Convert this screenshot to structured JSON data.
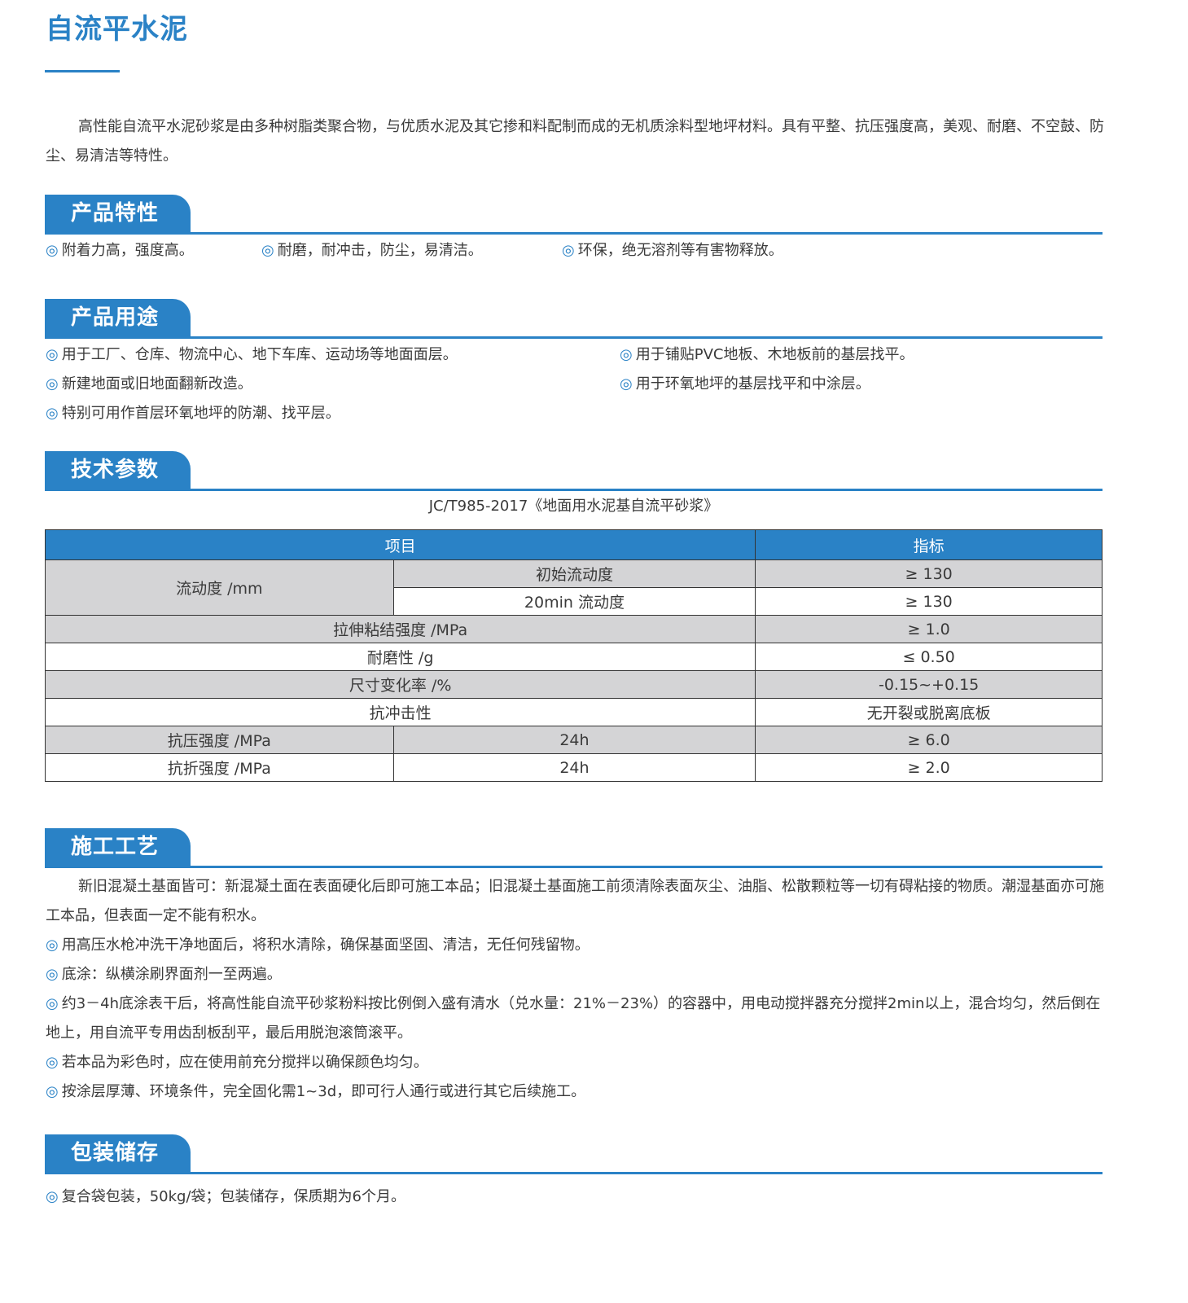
{
  "title": "自流平水泥",
  "intro": "高性能自流平水泥砂浆是由多种树脂类聚合物，与优质水泥及其它掺和料配制而成的无机质涂料型地坪材料。具有平整、抗压强度高，美观、耐磨、不空鼓、防尘、易清洁等特性。",
  "bullet": "◎",
  "features": {
    "heading": "产品特性",
    "items": [
      "附着力高，强度高。",
      "耐磨，耐冲击，防尘，易清洁。",
      "环保，绝无溶剂等有害物释放。"
    ]
  },
  "uses": {
    "heading": "产品用途",
    "items": [
      "用于工厂、仓库、物流中心、地下车库、运动场等地面面层。",
      "用于铺贴PVC地板、木地板前的基层找平。",
      "新建地面或旧地面翻新改造。",
      "用于环氧地坪的基层找平和中涂层。",
      "特别可用作首层环氧地坪的防潮、找平层。"
    ]
  },
  "tech": {
    "heading": "技术参数",
    "standard": "JC/T985-2017《地面用水泥基自流平砂浆》",
    "header": [
      "项目",
      "指标"
    ],
    "rows": {
      "flow": "流动度 /mm",
      "flow_a": "初始流动度",
      "flow_a_v": "≥ 130",
      "flow_b": "20min 流动度",
      "flow_b_v": "≥ 130",
      "tensile": "拉伸粘结强度 /MPa",
      "tensile_v": "≥ 1.0",
      "wear": "耐磨性 /g",
      "wear_v": "≤ 0.50",
      "size": "尺寸变化率 /%",
      "size_v": "-0.15~+0.15",
      "impact": "抗冲击性",
      "impact_v": "无开裂或脱离底板",
      "comp": "抗压强度 /MPa",
      "comp_t": "24h",
      "comp_v": "≥ 6.0",
      "flex": "抗折强度 /MPa",
      "flex_t": "24h",
      "flex_v": "≥ 2.0"
    }
  },
  "process": {
    "heading": "施工工艺",
    "intro": "新旧混凝土基面皆可：新混凝土面在表面硬化后即可施工本品；旧混凝土基面施工前须清除表面灰尘、油脂、松散颗粒等一切有碍粘接的物质。潮湿基面亦可施工本品，但表面一定不能有积水。",
    "items": [
      "用高压水枪冲洗干净地面后，将积水清除，确保基面坚固、清洁，无任何残留物。",
      "底涂：纵横涂刷界面剂一至两遍。",
      "约3－4h底涂表干后，将高性能自流平砂浆粉料按比例倒入盛有清水（兑水量：21%－23%）的容器中，用电动搅拌器充分搅拌2min以上，混合均匀，然后倒在地上，用自流平专用齿刮板刮平，最后用脱泡滚筒滚平。",
      "若本品为彩色时，应在使用前充分搅拌以确保颜色均匀。",
      "按涂层厚薄、环境条件，完全固化需1~3d，即可行人通行或进行其它后续施工。"
    ]
  },
  "storage": {
    "heading": "包装储存",
    "items": [
      "复合袋包装，50kg/袋；包装储存，保质期为6个月。"
    ]
  },
  "colors": {
    "accent": "#2a82c6",
    "row_gray": "#d4d4d6"
  }
}
